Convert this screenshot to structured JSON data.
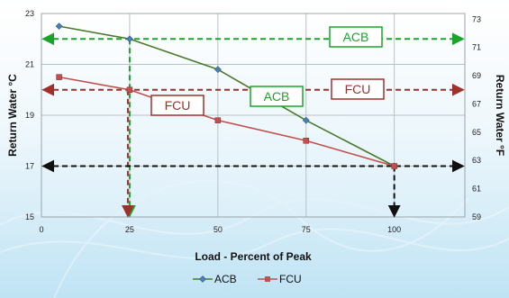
{
  "chart_data": {
    "type": "line",
    "title": "",
    "xlabel": "Load - Percent of Peak",
    "ylabel": "Return Water °C",
    "ylabel_right": "Return Water °F",
    "xlim": [
      0,
      120
    ],
    "ylim": [
      15,
      23
    ],
    "ylim_right": [
      59,
      73.4
    ],
    "x_ticks": [
      "0",
      "25",
      "50",
      "75",
      "100"
    ],
    "y_ticks": [
      "15",
      "17",
      "19",
      "21",
      "23"
    ],
    "y_ticks_right": [
      "59",
      "61",
      "63",
      "65",
      "67",
      "69",
      "71",
      "73"
    ],
    "grid": true,
    "legend_position": "bottom",
    "series": [
      {
        "name": "ACB",
        "color": "#4a7a2a",
        "marker": "diamond",
        "x": [
          5,
          25,
          50,
          75,
          100
        ],
        "y": [
          22.5,
          22.0,
          20.8,
          18.8,
          17.0
        ]
      },
      {
        "name": "FCU",
        "color": "#c0504d",
        "marker": "square",
        "x": [
          5,
          25,
          50,
          75,
          100
        ],
        "y": [
          20.5,
          20.0,
          18.8,
          18.0,
          17.0
        ]
      }
    ],
    "annotations": {
      "labels": [
        {
          "text": "ACB",
          "color": "#1aa52a"
        },
        {
          "text": "FCU",
          "color": "#a0302c"
        },
        {
          "text": "ACB",
          "color": "#1aa52a"
        },
        {
          "text": "FCU",
          "color": "#a0302c"
        }
      ]
    }
  }
}
